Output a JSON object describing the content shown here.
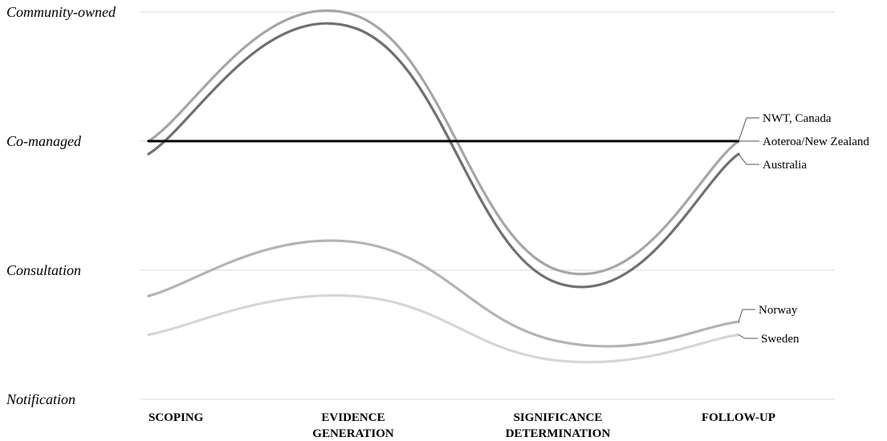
{
  "chart_data": {
    "type": "line",
    "title": "",
    "xlabel": "",
    "ylabel": "",
    "categories": [
      "SCOPING",
      "EVIDENCE GENERATION",
      "SIGNIFICANCE DETERMINATION",
      "FOLLOW-UP"
    ],
    "category_lines": [
      [
        "SCOPING"
      ],
      [
        "EVIDENCE",
        "GENERATION"
      ],
      [
        "SIGNIFICANCE",
        "DETERMINATION"
      ],
      [
        "FOLLOW-UP"
      ]
    ],
    "y_levels": [
      "Notification",
      "Consultation",
      "Co-managed",
      "Community-owned"
    ],
    "ylim": [
      0,
      3
    ],
    "grid": true,
    "legend": "labels at right end of lines",
    "series": [
      {
        "name": "NWT, Canada",
        "color": "#000000",
        "values": [
          2.0,
          2.0,
          2.0,
          2.0
        ]
      },
      {
        "name": "Aoteroa/New Zealand",
        "color": "#a6a6a6",
        "values": [
          2.0,
          2.98,
          1.0,
          2.0
        ]
      },
      {
        "name": "Australia",
        "color": "#707070",
        "values": [
          1.9,
          2.88,
          0.9,
          1.9
        ]
      },
      {
        "name": "Norway",
        "color": "#b4b4b4",
        "values": [
          0.8,
          1.22,
          0.45,
          0.6
        ]
      },
      {
        "name": "Sweden",
        "color": "#d6d6d6",
        "values": [
          0.5,
          0.8,
          0.3,
          0.5
        ]
      }
    ]
  }
}
